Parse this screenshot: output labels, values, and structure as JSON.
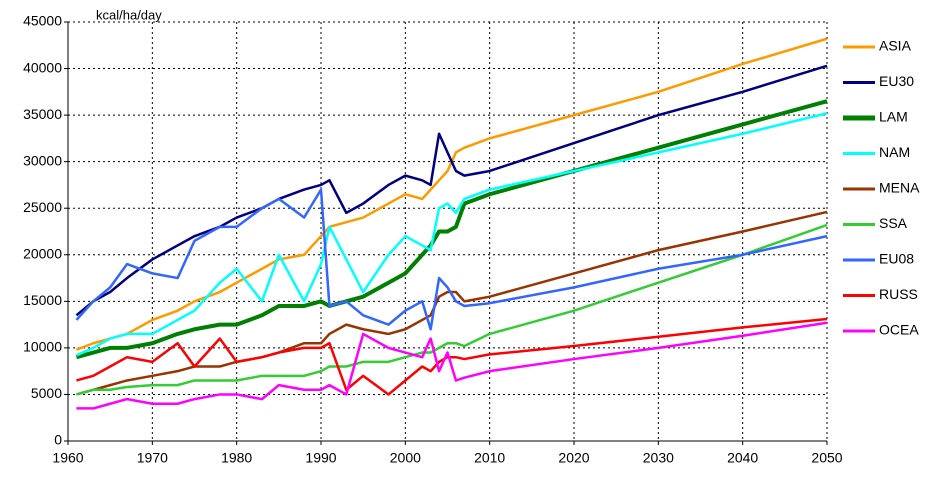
{
  "chart_data": {
    "type": "line",
    "y_label": "kcal/ha/day",
    "x": [
      1961,
      1963,
      1965,
      1967,
      1970,
      1973,
      1975,
      1978,
      1980,
      1983,
      1985,
      1988,
      1990,
      1991,
      1993,
      1995,
      1998,
      2000,
      2002,
      2003,
      2004,
      2005,
      2006,
      2007,
      2010,
      2020,
      2030,
      2040,
      2050
    ],
    "series": [
      {
        "name": "ASIA",
        "color": "#ff9900",
        "values": [
          9800,
          10500,
          11000,
          11500,
          13000,
          14000,
          15000,
          16000,
          17000,
          18500,
          19500,
          20000,
          22000,
          23000,
          23500,
          24000,
          25500,
          26500,
          26000,
          27000,
          28000,
          29000,
          31000,
          31500,
          32500,
          35000,
          37500,
          40500,
          43200
        ]
      },
      {
        "name": "EU30",
        "color": "#000080",
        "values": [
          13500,
          15000,
          16000,
          17500,
          19500,
          21000,
          22000,
          23000,
          24000,
          25000,
          26000,
          27000,
          27500,
          28000,
          24500,
          25500,
          27500,
          28500,
          28000,
          27500,
          33000,
          31000,
          29000,
          28500,
          29000,
          32000,
          35000,
          37500,
          40300
        ]
      },
      {
        "name": "LAM",
        "color": "#008000",
        "values": [
          9000,
          9500,
          10000,
          10000,
          10500,
          11500,
          12000,
          12500,
          12500,
          13500,
          14500,
          14500,
          15000,
          14500,
          15000,
          15500,
          17000,
          18000,
          20000,
          21000,
          22500,
          22500,
          23000,
          25500,
          26500,
          29000,
          31500,
          34000,
          36500
        ]
      },
      {
        "name": "NAM",
        "color": "#00ffff",
        "values": [
          9200,
          10000,
          11000,
          11500,
          11500,
          13000,
          14000,
          17000,
          18500,
          15000,
          20000,
          15000,
          19000,
          23000,
          19500,
          16000,
          20000,
          22000,
          21000,
          20500,
          25000,
          25500,
          24500,
          26000,
          27000,
          29000,
          31000,
          33000,
          35200
        ]
      },
      {
        "name": "MENA",
        "color": "#993300",
        "values": [
          5000,
          5500,
          6000,
          6500,
          7000,
          7500,
          8000,
          8000,
          8500,
          9000,
          9500,
          10500,
          10500,
          11500,
          12500,
          12000,
          11500,
          12000,
          13000,
          13500,
          15500,
          16000,
          16000,
          15000,
          15500,
          18000,
          20500,
          22500,
          24600
        ]
      },
      {
        "name": "SSA",
        "color": "#33cc33",
        "values": [
          5000,
          5500,
          5500,
          5800,
          6000,
          6000,
          6500,
          6500,
          6500,
          7000,
          7000,
          7000,
          7500,
          8000,
          8000,
          8500,
          8500,
          9000,
          9500,
          9500,
          10000,
          10500,
          10500,
          10200,
          11500,
          14000,
          17000,
          20000,
          23200
        ]
      },
      {
        "name": "EU08",
        "color": "#3366ff",
        "values": [
          13000,
          15000,
          16500,
          19000,
          18000,
          17500,
          21500,
          23000,
          23000,
          25000,
          26000,
          24000,
          27000,
          14500,
          15000,
          13500,
          12500,
          14000,
          15000,
          12000,
          17500,
          16500,
          15000,
          14500,
          14800,
          16500,
          18500,
          20000,
          22000
        ]
      },
      {
        "name": "RUSS",
        "color": "#ff0000",
        "values": [
          6500,
          7000,
          8000,
          9000,
          8500,
          10500,
          8000,
          11000,
          8500,
          9000,
          9500,
          10000,
          10000,
          10500,
          5500,
          7000,
          5000,
          6500,
          8000,
          7500,
          8500,
          9000,
          9000,
          8800,
          9300,
          10200,
          11200,
          12200,
          13100
        ]
      },
      {
        "name": "OCEA",
        "color": "#ff00ff",
        "values": [
          3500,
          3500,
          4000,
          4500,
          4000,
          4000,
          4500,
          5000,
          5000,
          4500,
          6000,
          5500,
          5500,
          6000,
          5000,
          11500,
          10000,
          9500,
          9000,
          11000,
          7500,
          9500,
          6500,
          6800,
          7500,
          8800,
          10000,
          11300,
          12700
        ]
      }
    ],
    "xlim": [
      1960,
      2050
    ],
    "xticks": [
      1960,
      1970,
      1980,
      1990,
      2000,
      2010,
      2020,
      2030,
      2040,
      2050
    ],
    "ylim": [
      0,
      45000
    ],
    "yticks": [
      0,
      5000,
      10000,
      15000,
      20000,
      25000,
      30000,
      35000,
      40000,
      45000
    ],
    "grid": true,
    "legend": "right"
  }
}
